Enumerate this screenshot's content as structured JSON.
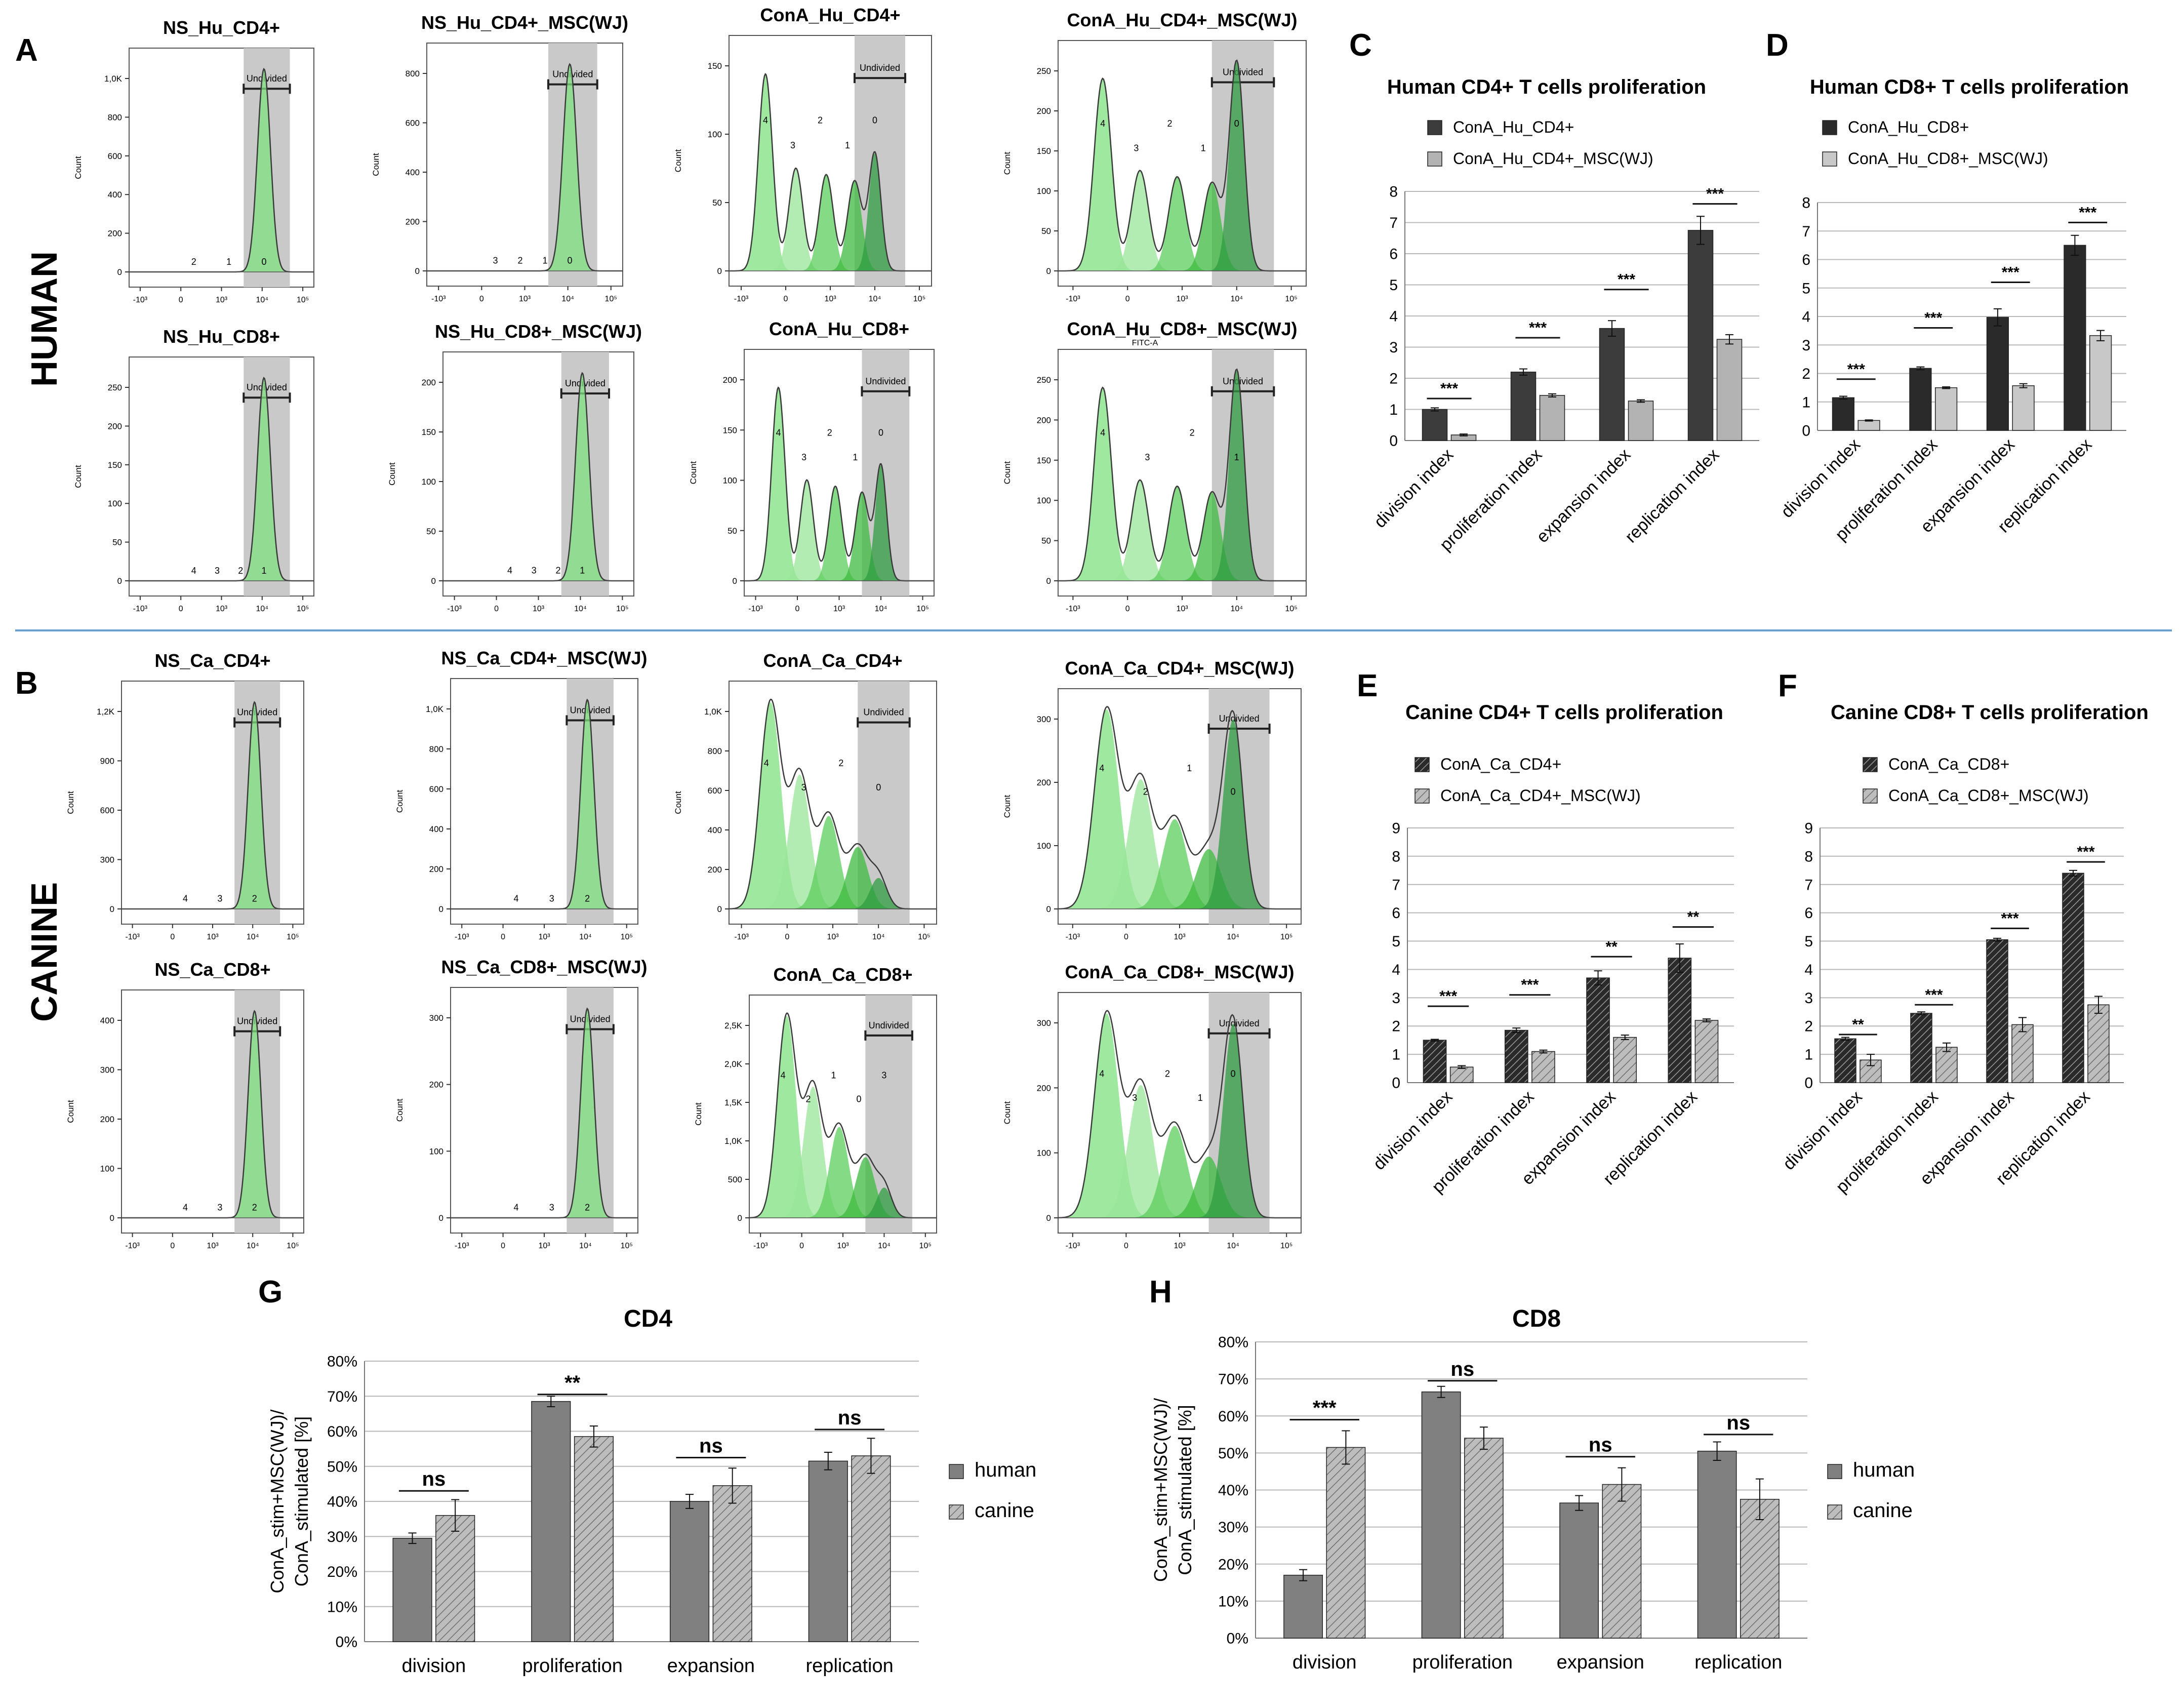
{
  "figure": {
    "panel_letters": [
      "A",
      "B",
      "C",
      "D",
      "E",
      "F",
      "G",
      "H"
    ],
    "row_labels": [
      "HUMAN",
      "CANINE"
    ]
  },
  "chart_data": [
    {
      "id": "A",
      "type": "flow-histogram-grid",
      "y_axis_label": "Count",
      "gate_label": "Undivided",
      "extra_axis_label": "FITC-A",
      "x_tick_labels": [
        "-10³",
        "0",
        "10³",
        "10⁴",
        "10⁵"
      ],
      "plots": [
        {
          "title": "NS_Hu_CD4+",
          "y_ticks": [
            "0",
            "200",
            "400",
            "600",
            "800",
            "1,0K"
          ],
          "peak_labels": [
            "2",
            "1",
            "0"
          ],
          "multi": false
        },
        {
          "title": "NS_Hu_CD4+_MSC(WJ)",
          "y_ticks": [
            "0",
            "200",
            "400",
            "600",
            "800"
          ],
          "peak_labels": [
            "3",
            "2",
            "1",
            "0"
          ],
          "multi": false
        },
        {
          "title": "ConA_Hu_CD4+",
          "y_ticks": [
            "0",
            "50",
            "100",
            "150"
          ],
          "peak_labels": [
            "4",
            "3",
            "2",
            "1",
            "0"
          ],
          "multi": true
        },
        {
          "title": "ConA_Hu_CD4+_MSC(WJ)",
          "y_ticks": [
            "0",
            "50",
            "100",
            "150",
            "200",
            "250"
          ],
          "peak_labels": [
            "4",
            "3",
            "2",
            "1",
            "0"
          ],
          "multi": true
        },
        {
          "title": "NS_Hu_CD8+",
          "y_ticks": [
            "0",
            "50",
            "100",
            "150",
            "200",
            "250"
          ],
          "peak_labels": [
            "4",
            "3",
            "2",
            "1"
          ],
          "multi": false
        },
        {
          "title": "NS_Hu_CD8+_MSC(WJ)",
          "y_ticks": [
            "0",
            "50",
            "100",
            "150",
            "200"
          ],
          "peak_labels": [
            "4",
            "3",
            "2",
            "1"
          ],
          "multi": false
        },
        {
          "title": "ConA_Hu_CD8+",
          "y_ticks": [
            "0",
            "50",
            "100",
            "150",
            "200"
          ],
          "peak_labels": [
            "4",
            "3",
            "2",
            "1",
            "0"
          ],
          "multi": true
        },
        {
          "title": "ConA_Hu_CD8+_MSC(WJ)",
          "y_ticks": [
            "0",
            "50",
            "100",
            "150",
            "200",
            "250"
          ],
          "peak_labels": [
            "4",
            "3",
            "2",
            "1"
          ],
          "multi": true
        }
      ]
    },
    {
      "id": "B",
      "type": "flow-histogram-grid",
      "y_axis_label": "Count",
      "gate_label": "Undivided",
      "x_tick_labels": [
        "-10³",
        "0",
        "10³",
        "10⁴",
        "10⁵"
      ],
      "plots": [
        {
          "title": "NS_Ca_CD4+",
          "y_ticks": [
            "0",
            "300",
            "600",
            "900",
            "1,2K"
          ],
          "peak_labels": [
            "4",
            "3",
            "2"
          ],
          "multi": false
        },
        {
          "title": "NS_Ca_CD4+_MSC(WJ)",
          "y_ticks": [
            "0",
            "200",
            "400",
            "600",
            "800",
            "1,0K"
          ],
          "peak_labels": [
            "4",
            "3",
            "2"
          ],
          "multi": false
        },
        {
          "title": "ConA_Ca_CD4+",
          "y_ticks": [
            "0",
            "200",
            "400",
            "600",
            "800",
            "1,0K"
          ],
          "peak_labels": [
            "4",
            "3",
            "2",
            "0"
          ],
          "multi": true
        },
        {
          "title": "ConA_Ca_CD4+_MSC(WJ)",
          "y_ticks": [
            "0",
            "100",
            "200",
            "300"
          ],
          "peak_labels": [
            "4",
            "2",
            "1",
            "0"
          ],
          "multi": true
        },
        {
          "title": "NS_Ca_CD8+",
          "y_ticks": [
            "0",
            "100",
            "200",
            "300",
            "400"
          ],
          "peak_labels": [
            "4",
            "3",
            "2"
          ],
          "multi": false
        },
        {
          "title": "NS_Ca_CD8+_MSC(WJ)",
          "y_ticks": [
            "0",
            "100",
            "200",
            "300"
          ],
          "peak_labels": [
            "4",
            "3",
            "2"
          ],
          "multi": false
        },
        {
          "title": "ConA_Ca_CD8+",
          "y_ticks": [
            "0",
            "500",
            "1,0K",
            "1,5K",
            "2,0K",
            "2,5K"
          ],
          "peak_labels": [
            "4",
            "2",
            "1",
            "0",
            "3"
          ],
          "multi": true
        },
        {
          "title": "ConA_Ca_CD8+_MSC(WJ)",
          "y_ticks": [
            "0",
            "100",
            "200",
            "300"
          ],
          "peak_labels": [
            "4",
            "3",
            "2",
            "1",
            "0"
          ],
          "multi": true
        }
      ]
    },
    {
      "id": "C",
      "type": "bar",
      "title": "Human CD4+ T cells proliferation",
      "categories": [
        "division index",
        "proliferation index",
        "expansion index",
        "replication index"
      ],
      "ylim": [
        0,
        8
      ],
      "y_ticks": [
        "0",
        "1",
        "2",
        "3",
        "4",
        "5",
        "6",
        "7",
        "8"
      ],
      "series": [
        {
          "name": "ConA_Hu_CD4+",
          "values": [
            1.0,
            2.2,
            3.6,
            6.75
          ],
          "errors": [
            0.05,
            0.1,
            0.25,
            0.45
          ],
          "fill": "#3c3c3c",
          "hatch": false
        },
        {
          "name": "ConA_Hu_CD4+_MSC(WJ)",
          "values": [
            0.18,
            1.45,
            1.27,
            3.25
          ],
          "errors": [
            0.03,
            0.05,
            0.04,
            0.15
          ],
          "fill": "#b3b3b3",
          "hatch": false
        }
      ],
      "significance": [
        "***",
        "***",
        "***",
        "***"
      ],
      "sig_levels": [
        1.35,
        3.3,
        4.85,
        7.6
      ]
    },
    {
      "id": "D",
      "type": "bar",
      "title": "Human CD8+ T cells proliferation",
      "categories": [
        "division index",
        "proliferation index",
        "expansion index",
        "replication index"
      ],
      "ylim": [
        0,
        8
      ],
      "y_ticks": [
        "0",
        "1",
        "2",
        "3",
        "4",
        "5",
        "6",
        "7",
        "8"
      ],
      "series": [
        {
          "name": "ConA_Hu_CD8+",
          "values": [
            1.15,
            2.18,
            3.97,
            6.5
          ],
          "errors": [
            0.05,
            0.05,
            0.3,
            0.35
          ],
          "fill": "#2a2a2a",
          "hatch": false
        },
        {
          "name": "ConA_Hu_CD8+_MSC(WJ)",
          "values": [
            0.35,
            1.5,
            1.57,
            3.33
          ],
          "errors": [
            0.02,
            0.03,
            0.07,
            0.18
          ],
          "fill": "#c8c8c8",
          "hatch": false
        }
      ],
      "significance": [
        "***",
        "***",
        "***",
        "***"
      ],
      "sig_levels": [
        1.8,
        3.6,
        5.2,
        7.3
      ]
    },
    {
      "id": "E",
      "type": "bar",
      "title": "Canine CD4+ T cells proliferation",
      "categories": [
        "division index",
        "proliferation index",
        "expansion index",
        "replication index"
      ],
      "ylim": [
        0,
        9
      ],
      "y_ticks": [
        "0",
        "1",
        "2",
        "3",
        "4",
        "5",
        "6",
        "7",
        "8",
        "9"
      ],
      "series": [
        {
          "name": "ConA_Ca_CD4+",
          "values": [
            1.5,
            1.85,
            3.7,
            4.4
          ],
          "errors": [
            0.03,
            0.08,
            0.25,
            0.5
          ],
          "fill": "#2a2a2a",
          "hatch": true
        },
        {
          "name": "ConA_Ca_CD4+_MSC(WJ)",
          "values": [
            0.55,
            1.1,
            1.6,
            2.2
          ],
          "errors": [
            0.05,
            0.05,
            0.08,
            0.05
          ],
          "fill": "#bbbbbb",
          "hatch": true
        }
      ],
      "significance": [
        "***",
        "***",
        "**",
        "**"
      ],
      "sig_levels": [
        2.7,
        3.1,
        4.45,
        5.5
      ]
    },
    {
      "id": "F",
      "type": "bar",
      "title": "Canine CD8+ T cells proliferation",
      "categories": [
        "division index",
        "proliferation index",
        "expansion index",
        "replication index"
      ],
      "ylim": [
        0,
        9
      ],
      "y_ticks": [
        "0",
        "1",
        "2",
        "3",
        "4",
        "5",
        "6",
        "7",
        "8",
        "9"
      ],
      "series": [
        {
          "name": "ConA_Ca_CD8+",
          "values": [
            1.55,
            2.45,
            5.05,
            7.4
          ],
          "errors": [
            0.05,
            0.05,
            0.05,
            0.1
          ],
          "fill": "#2a2a2a",
          "hatch": true
        },
        {
          "name": "ConA_Ca_CD8+_MSC(WJ)",
          "values": [
            0.8,
            1.25,
            2.05,
            2.75
          ],
          "errors": [
            0.2,
            0.15,
            0.25,
            0.3
          ],
          "fill": "#bbbbbb",
          "hatch": true
        }
      ],
      "significance": [
        "**",
        "***",
        "***",
        "***"
      ],
      "sig_levels": [
        1.7,
        2.75,
        5.45,
        7.8
      ]
    },
    {
      "id": "G",
      "type": "bar",
      "title": "CD4",
      "ylabel": "ConA_stim+MSC(WJ)/ ConA_stimulated [%]",
      "categories": [
        "division",
        "proliferation",
        "expansion",
        "replication"
      ],
      "ylim": [
        0,
        80
      ],
      "y_ticks": [
        "0%",
        "10%",
        "20%",
        "30%",
        "40%",
        "50%",
        "60%",
        "70%",
        "80%"
      ],
      "series": [
        {
          "name": "human",
          "values": [
            29.5,
            68.5,
            40,
            51.5
          ],
          "errors": [
            1.5,
            1.5,
            2,
            2.5
          ],
          "fill": "#808080",
          "hatch": false
        },
        {
          "name": "canine",
          "values": [
            36,
            58.5,
            44.5,
            53
          ],
          "errors": [
            4.5,
            3,
            5,
            5
          ],
          "fill": "#c8c8c8",
          "hatch": true
        }
      ],
      "significance": [
        "ns",
        "**",
        "ns",
        "ns"
      ],
      "sig_levels": [
        43,
        70.5,
        52.5,
        60.5
      ]
    },
    {
      "id": "H",
      "type": "bar",
      "title": "CD8",
      "ylabel": "ConA_stim+MSC(WJ)/ ConA_stimulated [%]",
      "categories": [
        "division",
        "proliferation",
        "expansion",
        "replication"
      ],
      "ylim": [
        0,
        80
      ],
      "y_ticks": [
        "0%",
        "10%",
        "20%",
        "30%",
        "40%",
        "50%",
        "60%",
        "70%",
        "80%"
      ],
      "series": [
        {
          "name": "human",
          "values": [
            17,
            66.5,
            36.5,
            50.5
          ],
          "errors": [
            1.5,
            1.5,
            2,
            2.5
          ],
          "fill": "#808080",
          "hatch": false
        },
        {
          "name": "canine",
          "values": [
            51.5,
            54,
            41.5,
            37.5
          ],
          "errors": [
            4.5,
            3,
            4.5,
            5.5
          ],
          "fill": "#c8c8c8",
          "hatch": true
        }
      ],
      "significance": [
        "***",
        "ns",
        "ns",
        "ns"
      ],
      "sig_levels": [
        59,
        69.5,
        49,
        55
      ]
    }
  ]
}
